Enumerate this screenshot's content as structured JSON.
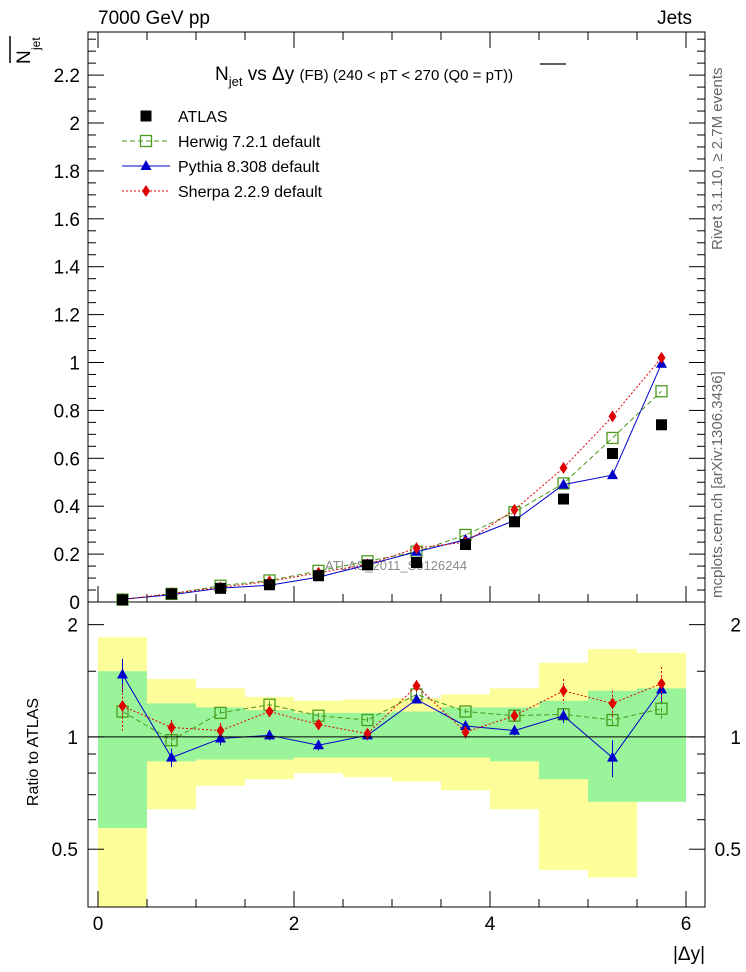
{
  "header": {
    "left": "7000 GeV pp",
    "right": "Jets"
  },
  "side_labels": {
    "rivet": "Rivet 3.1.10, ≥ 2.7M events",
    "mcplots": "mcplots.cern.ch [arXiv:1306.3436]"
  },
  "chart_data": {
    "type": "line",
    "title_main": "N",
    "title_sub": "jet",
    "title_rest": " vs Δy ",
    "title_small": "(FB) (240 < pT < 270 (Q0 = ",
    "title_over": "pT",
    "title_end": "))",
    "watermark": "ATLAS_2011_S9126244",
    "ylabel_top": "N",
    "ylabel_top_sub": "jet",
    "ylabel_ratio": "Ratio to ATLAS",
    "xlabel": "|Δy|",
    "xlim": [
      0,
      6.1
    ],
    "ylim_top": [
      0,
      2.38
    ],
    "ylim_ratio": [
      0.35,
      2.3
    ],
    "xticks": [
      "0",
      "2",
      "4",
      "6"
    ],
    "yticks_top": [
      "0",
      "0.2",
      "0.4",
      "0.6",
      "0.8",
      "1",
      "1.2",
      "1.4",
      "1.6",
      "1.8",
      "2",
      "2.2"
    ],
    "yticks_ratio": [
      "0.5",
      "1",
      "2"
    ],
    "legend": [
      {
        "name": "ATLAS",
        "color": "#000000",
        "marker": "square-filled",
        "line": "none"
      },
      {
        "name": "Herwig 7.2.1 default",
        "color": "#4a9a1c",
        "marker": "square-open",
        "line": "dashed"
      },
      {
        "name": "Pythia 8.308 default",
        "color": "#0000cc",
        "marker": "triangle",
        "line": "solid"
      },
      {
        "name": "Sherpa 2.2.9 default",
        "color": "#e00000",
        "marker": "diamond",
        "line": "dotted"
      }
    ],
    "x": [
      0.25,
      0.75,
      1.25,
      1.75,
      2.25,
      2.75,
      3.25,
      3.75,
      4.25,
      4.75,
      5.25,
      5.75
    ],
    "data": {
      "name": "ATLAS",
      "values": [
        0.009,
        0.034,
        0.057,
        0.072,
        0.11,
        0.155,
        0.165,
        0.24,
        0.335,
        0.43,
        0.62,
        0.74
      ],
      "band_inner": [
        [
          0.57,
          1.5
        ],
        [
          0.86,
          1.23
        ],
        [
          0.87,
          1.2
        ],
        [
          0.87,
          1.18
        ],
        [
          0.88,
          1.16
        ],
        [
          0.88,
          1.16
        ],
        [
          0.88,
          1.17
        ],
        [
          0.88,
          1.2
        ],
        [
          0.86,
          1.2
        ],
        [
          0.77,
          1.25
        ],
        [
          0.67,
          1.33
        ],
        [
          0.67,
          1.35
        ]
      ],
      "band_outer": [
        [
          0.35,
          1.85
        ],
        [
          0.64,
          1.43
        ],
        [
          0.74,
          1.35
        ],
        [
          0.77,
          1.28
        ],
        [
          0.8,
          1.25
        ],
        [
          0.78,
          1.26
        ],
        [
          0.76,
          1.27
        ],
        [
          0.72,
          1.3
        ],
        [
          0.64,
          1.35
        ],
        [
          0.44,
          1.58
        ],
        [
          0.42,
          1.72
        ],
        [
          0.72,
          1.68
        ]
      ]
    },
    "series": [
      {
        "name": "Herwig 7.2.1 default",
        "color": "#4a9a1c",
        "values": [
          0.01,
          0.034,
          0.068,
          0.09,
          0.13,
          0.17,
          0.21,
          0.28,
          0.375,
          0.495,
          0.685,
          0.88
        ],
        "ratio": [
          1.17,
          0.98,
          1.16,
          1.22,
          1.14,
          1.11,
          1.3,
          1.17,
          1.14,
          1.15,
          1.11,
          1.19
        ],
        "ratio_err": [
          0.05,
          0.04,
          0.03,
          0.03,
          0.02,
          0.02,
          0.03,
          0.02,
          0.03,
          0.04,
          0.05,
          0.07
        ]
      },
      {
        "name": "Pythia 8.308 default",
        "color": "#0000cc",
        "values": [
          0.012,
          0.03,
          0.058,
          0.07,
          0.104,
          0.155,
          0.21,
          0.26,
          0.34,
          0.49,
          0.53,
          0.995
        ],
        "ratio": [
          1.47,
          0.88,
          0.99,
          1.01,
          0.95,
          1.01,
          1.26,
          1.07,
          1.04,
          1.14,
          0.88,
          1.34
        ],
        "ratio_err": [
          0.15,
          0.05,
          0.04,
          0.03,
          0.03,
          0.03,
          0.03,
          0.03,
          0.03,
          0.05,
          0.1,
          0.1
        ]
      },
      {
        "name": "Sherpa 2.2.9 default",
        "color": "#e00000",
        "values": [
          0.01,
          0.036,
          0.061,
          0.086,
          0.122,
          0.157,
          0.225,
          0.25,
          0.385,
          0.56,
          0.775,
          1.02
        ],
        "ratio": [
          1.21,
          1.06,
          1.04,
          1.17,
          1.08,
          1.02,
          1.37,
          1.03,
          1.14,
          1.33,
          1.23,
          1.39
        ],
        "ratio_err": [
          0.17,
          0.05,
          0.05,
          0.04,
          0.03,
          0.03,
          0.05,
          0.04,
          0.04,
          0.1,
          0.1,
          0.15
        ]
      }
    ]
  }
}
